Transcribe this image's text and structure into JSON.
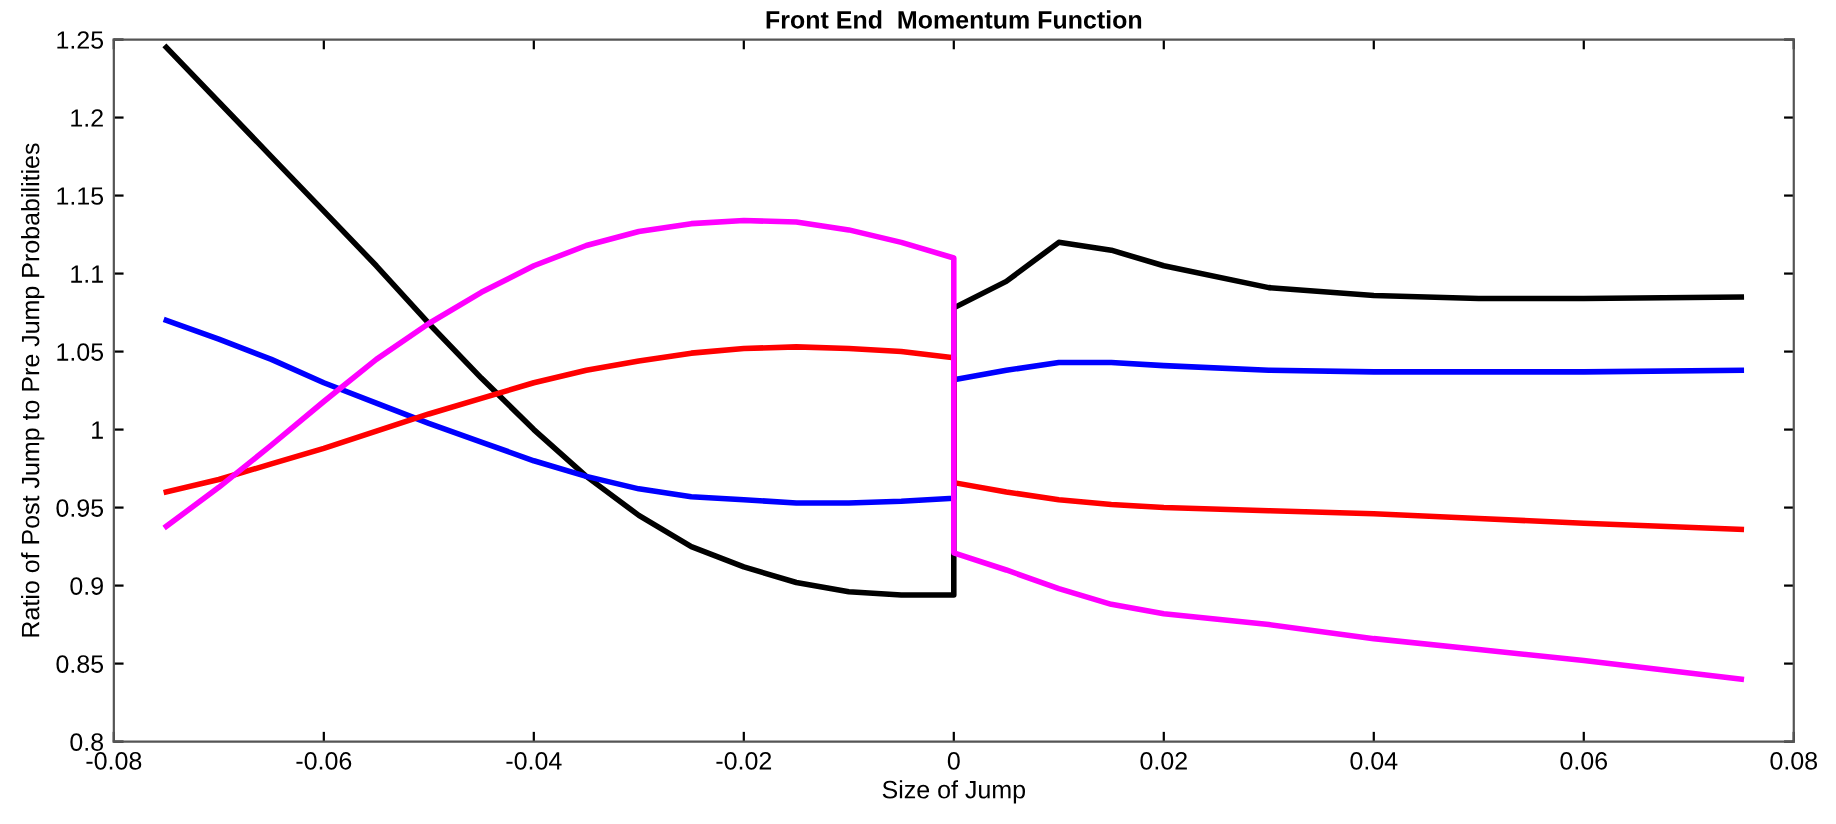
{
  "chart_data": {
    "type": "line",
    "title": "Front End  Momentum Function",
    "xlabel": "Size of Jump",
    "ylabel": "Ratio of Post Jump to Pre Jump Probabilities",
    "xlim": [
      -0.08,
      0.08
    ],
    "xticks": [
      -0.08,
      -0.06,
      -0.04,
      -0.02,
      0,
      0.02,
      0.04,
      0.06,
      0.08
    ],
    "ylim": [
      0.8,
      1.25
    ],
    "yticks": [
      0.8,
      0.85,
      0.9,
      0.95,
      1,
      1.05,
      1.1,
      1.15,
      1.2,
      1.25
    ],
    "grid": false,
    "legend": false,
    "marker": "none",
    "line_style": "solid",
    "x": [
      -0.075,
      -0.07,
      -0.065,
      -0.06,
      -0.055,
      -0.05,
      -0.045,
      -0.04,
      -0.035,
      -0.03,
      -0.025,
      -0.02,
      -0.015,
      -0.01,
      -0.005,
      0,
      0,
      0.005,
      0.01,
      0.015,
      0.02,
      0.03,
      0.04,
      0.05,
      0.06,
      0.075
    ],
    "series": [
      {
        "color": "#000000",
        "values": [
          1.245,
          1.21,
          1.175,
          1.14,
          1.105,
          1.068,
          1.033,
          1.0,
          0.97,
          0.945,
          0.925,
          0.912,
          0.902,
          0.896,
          0.894,
          0.894,
          1.078,
          1.095,
          1.12,
          1.115,
          1.105,
          1.091,
          1.086,
          1.084,
          1.084,
          1.085
        ]
      },
      {
        "color": "#0000ff",
        "values": [
          1.07,
          1.058,
          1.045,
          1.03,
          1.017,
          1.004,
          0.992,
          0.98,
          0.97,
          0.962,
          0.957,
          0.955,
          0.953,
          0.953,
          0.954,
          0.956,
          1.032,
          1.038,
          1.043,
          1.043,
          1.041,
          1.038,
          1.037,
          1.037,
          1.037,
          1.038
        ]
      },
      {
        "color": "#ff0000",
        "values": [
          0.96,
          0.968,
          0.978,
          0.988,
          0.999,
          1.01,
          1.02,
          1.03,
          1.038,
          1.044,
          1.049,
          1.052,
          1.053,
          1.052,
          1.05,
          1.046,
          0.966,
          0.96,
          0.955,
          0.952,
          0.95,
          0.948,
          0.946,
          0.943,
          0.94,
          0.936
        ]
      },
      {
        "color": "#ff00ff",
        "values": [
          0.938,
          0.963,
          0.99,
          1.018,
          1.045,
          1.068,
          1.088,
          1.105,
          1.118,
          1.127,
          1.132,
          1.134,
          1.133,
          1.128,
          1.12,
          1.11,
          0.921,
          0.91,
          0.898,
          0.888,
          0.882,
          0.875,
          0.866,
          0.859,
          0.852,
          0.84
        ]
      }
    ]
  }
}
